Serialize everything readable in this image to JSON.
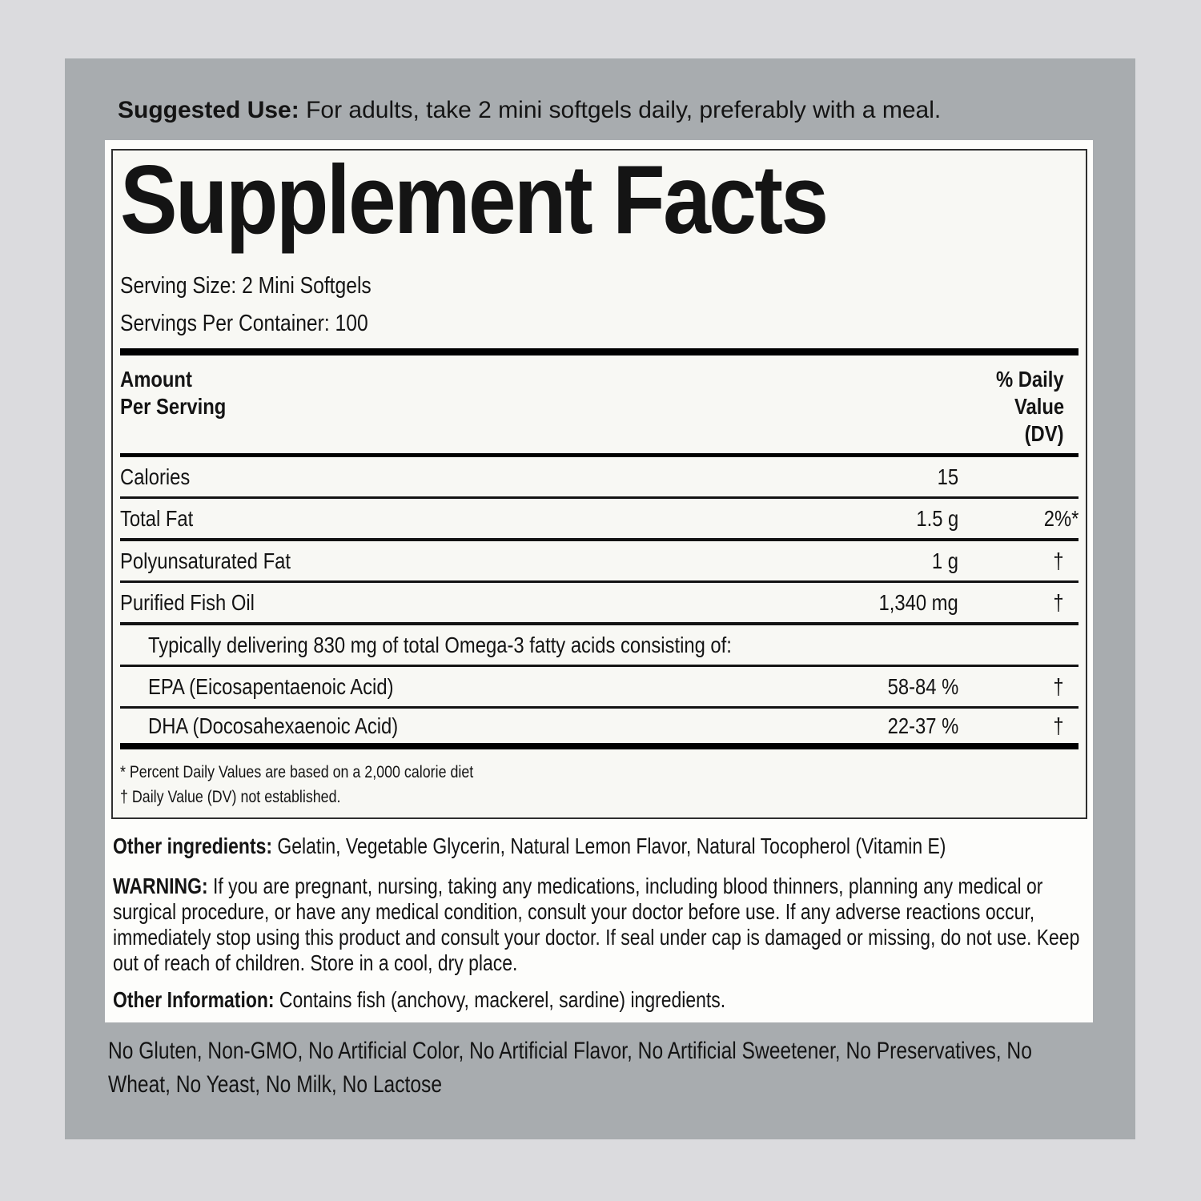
{
  "colors": {
    "page_bg": "#dbdbde",
    "panel_bg": "#a8acaf",
    "label_bg": "#fdfdfb",
    "facts_bg": "#f8f8f4",
    "rule_color": "#000000",
    "text_color": "#141414"
  },
  "suggested_use": {
    "label": "Suggested Use:",
    "text": "For adults, take 2 mini softgels daily, preferably with a meal."
  },
  "facts": {
    "title": "Supplement Facts",
    "serving_size": "Serving Size: 2 Mini Softgels",
    "servings_per_container": "Servings Per Container: 100",
    "header": {
      "amount_lines": [
        "Amount",
        "Per Serving"
      ],
      "dv_lines": [
        "% Daily",
        "Value",
        "(DV)"
      ]
    },
    "rows": [
      {
        "label": "Calories",
        "amount": "15",
        "dv": ""
      },
      {
        "label": "Total Fat",
        "amount": "1.5 g",
        "dv": "2%*"
      },
      {
        "label": "Polyunsaturated Fat",
        "amount": "1 g",
        "dv": "†"
      },
      {
        "label": "Purified Fish Oil",
        "amount": "1,340 mg",
        "dv": "†"
      },
      {
        "label": "Typically delivering 830 mg of total Omega-3 fatty acids consisting of:",
        "amount": "",
        "dv": ""
      },
      {
        "label": "EPA (Eicosapentaenoic Acid)",
        "amount": "58-84 %",
        "dv": "†"
      },
      {
        "label": "DHA (Docosahexaenoic Acid)",
        "amount": "22-37 %",
        "dv": "†"
      }
    ],
    "footnotes": [
      "* Percent Daily Values are based on a 2,000 calorie diet",
      "† Daily Value (DV) not established."
    ]
  },
  "other_ingredients": {
    "label": "Other ingredients:",
    "text": "Gelatin, Vegetable Glycerin, Natural Lemon Flavor, Natural Tocopherol (Vitamin E)"
  },
  "warning": {
    "label": "WARNING:",
    "text": "If you are pregnant, nursing, taking any medications, including blood thinners, planning any medical or surgical procedure, or have any medical condition, consult your doctor before use. If any adverse reactions occur, immediately stop using this product and consult your doctor. If seal under cap is damaged or missing, do not use. Keep out of reach of children. Store in a cool, dry place."
  },
  "other_information": {
    "label": "Other Information:",
    "text": "Contains fish (anchovy, mackerel, sardine) ingredients."
  },
  "claims": "No Gluten, Non-GMO, No Artificial Color, No Artificial Flavor, No Artificial Sweetener, No Preservatives, No Wheat, No Yeast, No Milk, No Lactose"
}
